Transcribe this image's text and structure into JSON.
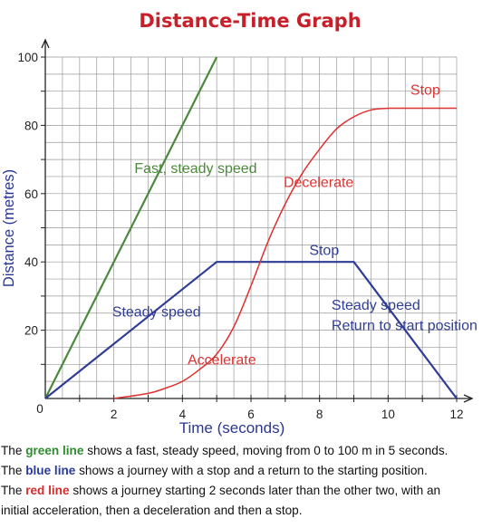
{
  "chart_data": {
    "type": "line",
    "title": "Distance-Time Graph",
    "xlabel": "Time (seconds)",
    "ylabel": "Distance (metres)",
    "xlim": [
      0,
      12
    ],
    "ylim": [
      0,
      100
    ],
    "x_ticks": [
      2,
      4,
      6,
      8,
      10,
      12
    ],
    "y_ticks": [
      20,
      40,
      60,
      80,
      100
    ],
    "origin_label": "0",
    "grid": true,
    "colors": {
      "green": "#4a8a3a",
      "blue": "#2f3d95",
      "red": "#e03030",
      "title": "#c8202a",
      "axis_label": "#2b3690",
      "grid": "#999999"
    },
    "series": [
      {
        "color_key": "green",
        "points": [
          [
            0,
            0
          ],
          [
            5,
            100
          ]
        ]
      },
      {
        "color_key": "blue",
        "points": [
          [
            0,
            0
          ],
          [
            5,
            40
          ],
          [
            9,
            40
          ],
          [
            12,
            0
          ]
        ]
      },
      {
        "color_key": "red",
        "smooth": true,
        "points": [
          [
            2,
            0
          ],
          [
            3,
            1.5
          ],
          [
            3.5,
            3
          ],
          [
            4,
            5
          ],
          [
            4.5,
            8.5
          ],
          [
            5,
            13
          ],
          [
            5.5,
            21
          ],
          [
            6,
            33
          ],
          [
            6.5,
            46
          ],
          [
            7,
            57
          ],
          [
            7.5,
            66
          ],
          [
            8,
            73
          ],
          [
            8.5,
            79
          ],
          [
            9,
            82.5
          ],
          [
            9.5,
            84.5
          ],
          [
            10,
            85
          ],
          [
            12,
            85
          ]
        ]
      }
    ],
    "annotations": [
      {
        "id": "fast",
        "text": "Fast, steady speed",
        "x": 2.6,
        "y": 66,
        "color_key": "green"
      },
      {
        "id": "steady",
        "text": "Steady speed",
        "x": 1.95,
        "y": 24,
        "color_key": "blue"
      },
      {
        "id": "stop-blue",
        "text": "Stop",
        "x": 7.7,
        "y": 42,
        "color_key": "blue"
      },
      {
        "id": "steady-return-1",
        "text": "Steady speed",
        "x": 8.35,
        "y": 26,
        "color_key": "blue"
      },
      {
        "id": "steady-return-2",
        "text": "Return to start position",
        "x": 8.35,
        "y": 20,
        "color_key": "blue"
      },
      {
        "id": "decelerate",
        "text": "Decelerate",
        "x": 6.95,
        "y": 62,
        "color_key": "red"
      },
      {
        "id": "accelerate",
        "text": "Accelerate",
        "x": 4.15,
        "y": 10,
        "color_key": "red"
      },
      {
        "id": "stop-red",
        "text": "Stop",
        "x": 10.65,
        "y": 89,
        "color_key": "red"
      }
    ]
  },
  "caption": {
    "line1": {
      "pre": "The ",
      "keyword": "green line",
      "post": " shows a fast, steady speed, moving from 0 to 100 m in 5 seconds."
    },
    "line2": {
      "pre": "The ",
      "keyword": "blue line",
      "post": " shows a journey with a stop and a return to the starting position."
    },
    "line3": {
      "pre": "The ",
      "keyword": "red line",
      "post": " shows a journey starting 2 seconds later than the other two, with an"
    },
    "line4": {
      "text": "initial acceleration, then a deceleration and then a stop."
    }
  }
}
